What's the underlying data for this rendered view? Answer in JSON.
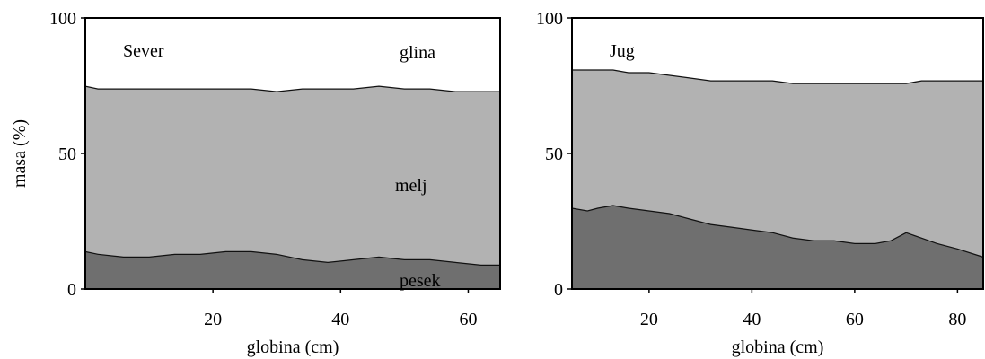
{
  "chart_data": [
    {
      "type": "area",
      "stacked": true,
      "annotation": "Sever",
      "xlabel": "globina (cm)",
      "ylabel": "masa (%)",
      "xlim": [
        0,
        65
      ],
      "ylim": [
        0,
        100
      ],
      "xticks": [
        20,
        40,
        60
      ],
      "yticks": [
        0,
        50,
        100
      ],
      "x": [
        0,
        2,
        6,
        10,
        14,
        18,
        22,
        26,
        30,
        34,
        38,
        42,
        46,
        50,
        54,
        58,
        62,
        65
      ],
      "series": [
        {
          "name": "pesek",
          "color": "#6f6f6f",
          "values": [
            14,
            13,
            12,
            12,
            13,
            13,
            14,
            14,
            13,
            11,
            10,
            11,
            12,
            11,
            11,
            10,
            9,
            9
          ]
        },
        {
          "name": "melj",
          "color": "#b2b2b2",
          "values": [
            61,
            61,
            62,
            62,
            61,
            61,
            60,
            60,
            60,
            63,
            64,
            63,
            63,
            63,
            63,
            63,
            64,
            64
          ]
        },
        {
          "name": "glina",
          "color": "#ffffff",
          "values": [
            25,
            26,
            26,
            26,
            26,
            26,
            26,
            26,
            27,
            26,
            26,
            26,
            25,
            26,
            26,
            27,
            27,
            27
          ]
        }
      ]
    },
    {
      "type": "area",
      "stacked": true,
      "annotation": "Jug",
      "xlabel": "globina (cm)",
      "ylabel": "",
      "xlim": [
        5,
        85
      ],
      "ylim": [
        0,
        100
      ],
      "xticks": [
        20,
        40,
        60,
        80
      ],
      "yticks": [
        0,
        50,
        100
      ],
      "x": [
        5,
        8,
        10,
        13,
        16,
        20,
        24,
        28,
        32,
        36,
        40,
        44,
        48,
        52,
        56,
        60,
        64,
        67,
        70,
        73,
        76,
        80,
        85
      ],
      "series": [
        {
          "name": "pesek",
          "color": "#6f6f6f",
          "values": [
            30,
            29,
            30,
            31,
            30,
            29,
            28,
            26,
            24,
            23,
            22,
            21,
            19,
            18,
            18,
            17,
            17,
            18,
            21,
            19,
            17,
            15,
            12
          ]
        },
        {
          "name": "melj",
          "color": "#b2b2b2",
          "values": [
            51,
            52,
            51,
            50,
            50,
            51,
            51,
            52,
            53,
            54,
            55,
            56,
            57,
            58,
            58,
            59,
            59,
            58,
            55,
            58,
            60,
            62,
            65
          ]
        },
        {
          "name": "glina",
          "color": "#ffffff",
          "values": [
            19,
            19,
            19,
            19,
            20,
            20,
            21,
            22,
            23,
            23,
            23,
            23,
            24,
            24,
            24,
            24,
            24,
            24,
            24,
            23,
            23,
            23,
            23
          ]
        }
      ]
    }
  ]
}
